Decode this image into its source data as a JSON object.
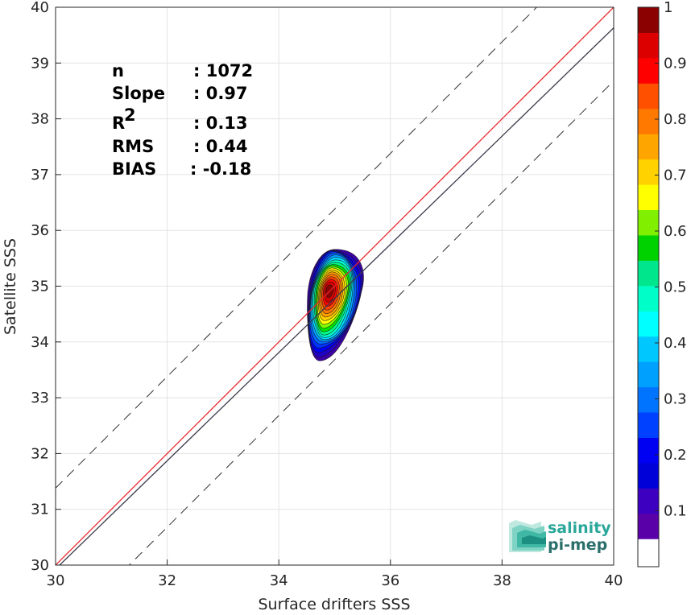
{
  "chart_data": {
    "type": "heatmap",
    "subtype": "density-scatter-contour",
    "xlabel": "Surface drifters SSS",
    "ylabel": "Satellite SSS",
    "xlim": [
      30,
      40
    ],
    "ylim": [
      30,
      40
    ],
    "x_ticks": [
      "30",
      "32",
      "34",
      "36",
      "38",
      "40"
    ],
    "y_ticks": [
      "30",
      "31",
      "32",
      "33",
      "34",
      "35",
      "36",
      "37",
      "38",
      "39",
      "40"
    ],
    "grid": true,
    "stats": [
      {
        "label": "n",
        "value": ": 1072"
      },
      {
        "label": "Slope",
        "value": ": 0.97"
      },
      {
        "label": "R",
        "sup": "2",
        "value": ": 0.13"
      },
      {
        "label": "RMS",
        "value": ": 0.44"
      },
      {
        "label": "BIAS",
        "value": ": -0.18"
      }
    ],
    "lines": [
      {
        "name": "identity",
        "color": "#e8262a",
        "slope": 1.0,
        "intercept": 0.0,
        "style": "solid"
      },
      {
        "name": "fit",
        "color": "#3a3a4a",
        "slope": 0.97,
        "intercept": 0.83,
        "style": "solid"
      },
      {
        "name": "upper-bound",
        "color": "#333333",
        "slope": 1.0,
        "intercept": 1.38,
        "style": "dashed"
      },
      {
        "name": "lower-bound",
        "color": "#333333",
        "slope": 1.0,
        "intercept": -1.32,
        "style": "dashed"
      }
    ],
    "density": {
      "center": [
        34.88,
        34.9
      ],
      "levels": [
        0.05,
        0.1,
        0.15,
        0.2,
        0.25,
        0.3,
        0.35,
        0.4,
        0.45,
        0.5,
        0.55,
        0.6,
        0.65,
        0.7,
        0.75,
        0.8,
        0.85,
        0.9,
        0.95
      ],
      "level_colors": [
        "#3d00a8",
        "#2000c9",
        "#0000f2",
        "#0033ff",
        "#0066ff",
        "#00a0ff",
        "#00ddff",
        "#00ffd0",
        "#00ff88",
        "#00e600",
        "#80ff00",
        "#ffff00",
        "#ffd000",
        "#ffa000",
        "#ff7800",
        "#ff4400",
        "#ff0000",
        "#d00000",
        "#8b0000"
      ]
    },
    "colorbar": {
      "range": [
        0,
        1
      ],
      "tick_labels": [
        "0.1",
        "0.2",
        "0.3",
        "0.4",
        "0.5",
        "0.6",
        "0.7",
        "0.8",
        "0.9",
        "1"
      ],
      "tick_values": [
        0.1,
        0.2,
        0.3,
        0.4,
        0.5,
        0.6,
        0.7,
        0.8,
        0.9,
        1.0
      ],
      "segment_colors": [
        "#ffffff",
        "#5a00a8",
        "#3d00c0",
        "#0000d8",
        "#0000f2",
        "#0040ff",
        "#0073ff",
        "#00a0ff",
        "#00c8ff",
        "#00ffff",
        "#00ffc8",
        "#00e68c",
        "#00d200",
        "#80f000",
        "#ffff00",
        "#ffd200",
        "#ffa500",
        "#ff7800",
        "#ff5000",
        "#ff0000",
        "#dc0000",
        "#8b0000"
      ]
    }
  },
  "logo": {
    "line1": "salinity",
    "line2": "pi-mep"
  }
}
